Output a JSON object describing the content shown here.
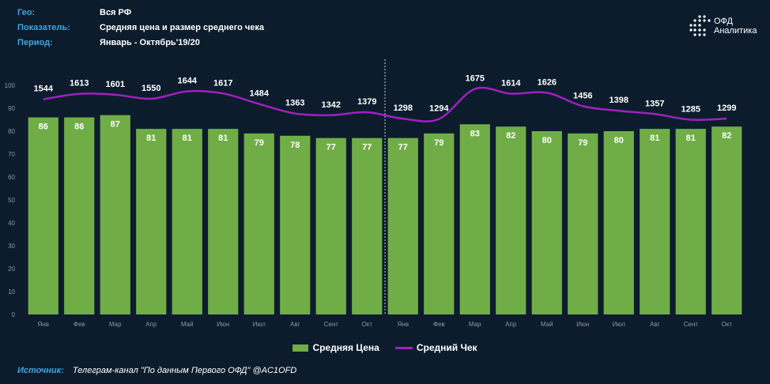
{
  "header": {
    "geo_label": "Гео:",
    "geo_value": "Вся РФ",
    "indicator_label": "Показатель:",
    "indicator_value": "Средняя цена и размер среднего чека",
    "period_label": "Период:",
    "period_value": "Январь - Октябрь'19/20"
  },
  "logo": {
    "line1": "ОФД",
    "line2": "Аналитика"
  },
  "footer": {
    "source_label": "Источник:",
    "source_text": "Телеграм-канал \"По данным Первого ОФД\" @AC1OFD"
  },
  "colors": {
    "bar": "#70ad47",
    "line": "#a020c0",
    "background": "#0c1c2c",
    "accent": "#3ea6e0"
  },
  "chart_data": {
    "type": "bar",
    "categories": [
      "Янв",
      "Фев",
      "Мар",
      "Апр",
      "Май",
      "Июн",
      "Июл",
      "Авг",
      "Сент",
      "Окт",
      "Янв",
      "Фев",
      "Мар",
      "Апр",
      "Май",
      "Июн",
      "Июл",
      "Авг",
      "Сент",
      "Окт"
    ],
    "series": [
      {
        "name": "Средняя Цена",
        "type": "bar",
        "values": [
          86,
          86,
          87,
          81,
          81,
          81,
          79,
          78,
          77,
          77,
          77,
          79,
          83,
          82,
          80,
          79,
          80,
          81,
          81,
          82
        ]
      },
      {
        "name": "Средний Чек",
        "type": "line",
        "values": [
          1544,
          1613,
          1601,
          1550,
          1644,
          1617,
          1484,
          1363,
          1342,
          1379,
          1298,
          1294,
          1675,
          1614,
          1626,
          1456,
          1398,
          1357,
          1285,
          1299
        ]
      }
    ],
    "ylim": [
      0,
      100
    ],
    "yticks": [
      0,
      10,
      20,
      30,
      40,
      50,
      60,
      70,
      80,
      90,
      100
    ],
    "divider_after_index": 9,
    "legend_position": "bottom"
  }
}
